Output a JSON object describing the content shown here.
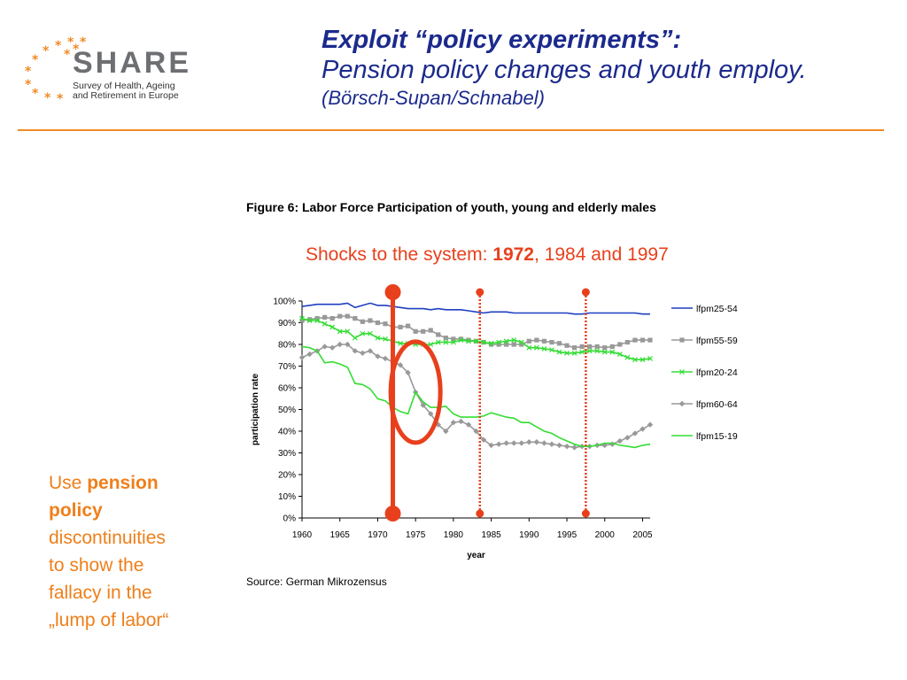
{
  "logo": {
    "word": "SHARE",
    "subtitle_line1": "Survey of Health, Ageing",
    "subtitle_line2": "and Retirement in Europe"
  },
  "title": {
    "line1": "Exploit “policy experiments”:",
    "line2": "Pension policy changes and youth employ.",
    "line3": "(Börsch-Supan/Schnabel)"
  },
  "figure_title": "Figure 6: Labor Force Participation of youth, young and elderly males",
  "shocks": {
    "prefix": "Shocks to the system: ",
    "year1": "1972",
    "rest": ", 1984 and 1997"
  },
  "source": "Source: German Mikrozensus",
  "side_text": {
    "pre": "Use ",
    "bold1": "pension",
    "bold2": "policy",
    "line3": "discontinuities",
    "line4": "to show the",
    "line5": "fallacy in the",
    "line6": "„lump of labor“"
  },
  "colors": {
    "title": "#1b2a8c",
    "accent_orange": "#ef7f1a",
    "marker_red": "#e8401c",
    "rule": "#f08a24"
  },
  "chart_data": {
    "type": "line",
    "xlabel": "year",
    "ylabel": "participation rate",
    "xlim": [
      1960,
      2006
    ],
    "ylim": [
      0,
      100
    ],
    "x_ticks": [
      "1960",
      "1965",
      "1970",
      "1975",
      "1980",
      "1985",
      "1990",
      "1995",
      "2000",
      "2005"
    ],
    "y_ticks": [
      "0%",
      "10%",
      "20%",
      "30%",
      "40%",
      "50%",
      "60%",
      "70%",
      "80%",
      "90%",
      "100%"
    ],
    "legend_position": "right",
    "grid": false,
    "x": [
      1960,
      1961,
      1962,
      1963,
      1964,
      1965,
      1966,
      1967,
      1968,
      1969,
      1970,
      1971,
      1972,
      1973,
      1974,
      1975,
      1976,
      1977,
      1978,
      1979,
      1980,
      1981,
      1982,
      1983,
      1984,
      1985,
      1986,
      1987,
      1988,
      1989,
      1990,
      1991,
      1992,
      1993,
      1994,
      1995,
      1996,
      1997,
      1998,
      1999,
      2000,
      2001,
      2002,
      2003,
      2004,
      2005,
      2006
    ],
    "series": [
      {
        "name": "lfpm25-54",
        "color": "#1f3fbf",
        "marker": "none",
        "values": [
          97.5,
          98,
          98.5,
          98.5,
          98.5,
          98.5,
          99,
          97,
          98,
          99,
          98,
          98,
          97.5,
          97,
          96.5,
          96.5,
          96.5,
          96,
          96.5,
          96,
          96,
          96,
          95.5,
          95,
          94.5,
          95,
          95,
          95,
          94.5,
          94.5,
          94.5,
          94.5,
          94.5,
          94.5,
          94.5,
          94.5,
          94,
          94,
          94.5,
          94.5,
          94.5,
          94.5,
          94.5,
          94.5,
          94.5,
          94,
          94
        ]
      },
      {
        "name": "lfpm55-59",
        "color": "#999999",
        "marker": "square",
        "values": [
          91,
          91.5,
          92,
          92.5,
          92,
          93,
          93,
          92,
          90.5,
          91,
          90,
          89.5,
          88,
          88,
          88.5,
          86,
          86,
          86.5,
          84.5,
          83,
          82.5,
          82.5,
          82,
          81.5,
          81,
          80,
          80,
          80,
          80,
          80,
          81.5,
          82,
          81.5,
          81,
          80.5,
          79.5,
          78.5,
          79,
          79,
          79,
          78.5,
          79,
          80,
          81,
          82,
          82,
          82
        ]
      },
      {
        "name": "lfpm20-24",
        "color": "#33dd33",
        "marker": "x",
        "values": [
          92,
          91,
          91,
          89.5,
          88,
          86,
          86,
          83,
          85,
          85,
          83,
          82.5,
          81.5,
          80.5,
          80.5,
          80,
          80,
          80,
          81,
          81,
          81,
          82,
          81.5,
          81.5,
          81,
          80.5,
          81,
          81.5,
          82,
          81,
          78.5,
          78.5,
          78,
          77.5,
          76.5,
          76,
          76,
          76.5,
          77,
          77,
          76.5,
          76.5,
          75.5,
          74,
          73,
          73,
          73.5
        ]
      },
      {
        "name": "lfpm60-64",
        "color": "#999999",
        "marker": "diamond",
        "values": [
          74,
          75.5,
          77,
          79,
          78.5,
          80,
          80,
          77,
          76,
          77,
          74.5,
          73.5,
          72,
          70.5,
          67,
          58,
          52,
          48,
          43,
          40,
          44,
          44.5,
          43,
          40,
          36,
          33.5,
          34,
          34.5,
          34.5,
          34.5,
          35,
          35,
          34.5,
          34,
          33.5,
          33,
          32.5,
          33,
          33,
          33.5,
          33.5,
          34,
          35.5,
          37,
          39,
          41,
          43
        ]
      },
      {
        "name": "lfpm15-19",
        "color": "#33dd33",
        "marker": "none",
        "values": [
          79,
          78.5,
          77,
          71.5,
          72,
          71,
          69.5,
          62,
          61.5,
          59.5,
          55,
          54,
          51,
          49,
          48,
          58,
          53.5,
          51,
          51,
          51.5,
          48,
          46.5,
          46.5,
          46.5,
          47,
          48.5,
          47.5,
          46.5,
          46,
          44,
          44,
          42,
          40,
          39,
          37,
          35.5,
          34,
          33,
          33,
          33.5,
          34.5,
          34.5,
          33.5,
          33,
          32.5,
          33.5,
          34
        ]
      }
    ],
    "vertical_markers": [
      {
        "year": 1972,
        "style": "solid"
      },
      {
        "year": 1983.5,
        "style": "dotted"
      },
      {
        "year": 1997.5,
        "style": "dotted"
      }
    ],
    "annotation": "red ellipse around 1972–1977 drop"
  }
}
